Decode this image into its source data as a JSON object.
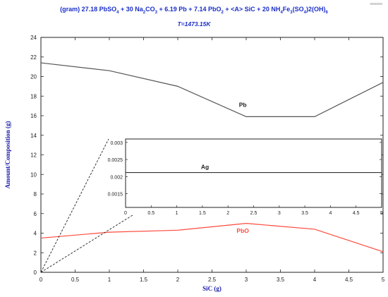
{
  "header": {
    "formula_parts": [
      {
        "t": "(gram) 27.18 PbSO",
        "s": ""
      },
      {
        "t": "4",
        "s": "sub"
      },
      {
        "t": "  +  30 Na",
        "s": ""
      },
      {
        "t": "2",
        "s": "sub"
      },
      {
        "t": "CO",
        "s": ""
      },
      {
        "t": "3",
        "s": "sub"
      },
      {
        "t": "  +  6.19 Pb  +  7.14 PbO",
        "s": ""
      },
      {
        "t": "2",
        "s": "sub"
      },
      {
        "t": "  +  <A> SiC  +  20 NH",
        "s": ""
      },
      {
        "t": "4",
        "s": "sub"
      },
      {
        "t": "Fe",
        "s": ""
      },
      {
        "t": "3",
        "s": "sub"
      },
      {
        "t": "(SO",
        "s": ""
      },
      {
        "t": "4",
        "s": "sub"
      },
      {
        "t": ")2(OH)",
        "s": ""
      },
      {
        "t": "6",
        "s": "sub"
      }
    ],
    "temperature": "T=1473.15K",
    "corner_code": "0000000"
  },
  "chart_data": [
    {
      "type": "line",
      "xlabel": "SiC (g)",
      "ylabel": "Amount/Composition (g)",
      "xlim": [
        0,
        5
      ],
      "ylim": [
        0,
        24
      ],
      "xticks": [
        "0",
        "0.5",
        "1",
        "1.5",
        "2",
        "2.5",
        "3",
        "3.5",
        "4",
        "4.5",
        "5"
      ],
      "yticks": [
        "0",
        "2",
        "4",
        "6",
        "8",
        "10",
        "12",
        "14",
        "16",
        "18",
        "20",
        "22",
        "24"
      ],
      "grid": false,
      "series": [
        {
          "name": "Pb",
          "color": "#555555",
          "x": [
            0,
            1,
            2,
            3,
            4,
            5
          ],
          "y": [
            21.4,
            20.6,
            19.0,
            15.9,
            15.9,
            19.4
          ],
          "label_at": [
            2.95,
            16.9
          ]
        },
        {
          "name": "PbO",
          "color": "#ff4a3d",
          "x": [
            0,
            1,
            2,
            3,
            4,
            5
          ],
          "y": [
            3.5,
            4.1,
            4.3,
            5.0,
            4.4,
            2.1
          ],
          "label_at": [
            2.95,
            4.05
          ]
        }
      ]
    },
    {
      "type": "line",
      "inset": true,
      "xlim": [
        0,
        5
      ],
      "ylim": [
        0.0011,
        0.0031
      ],
      "xticks": [
        "0",
        "0.5",
        "1",
        "1.5",
        "2",
        "2.5",
        "3",
        "3.5",
        "4",
        "4.5",
        "5"
      ],
      "yticks": [
        "0.0015",
        "0.002",
        "0.0025",
        "0.003"
      ],
      "grid": false,
      "series": [
        {
          "name": "Ag",
          "color": "#333333",
          "x": [
            0,
            1,
            2,
            3,
            4,
            5
          ],
          "y": [
            0.00212,
            0.00212,
            0.00212,
            0.00212,
            0.00212,
            0.00212
          ],
          "label_at": [
            1.55,
            0.00222
          ]
        }
      ]
    }
  ]
}
